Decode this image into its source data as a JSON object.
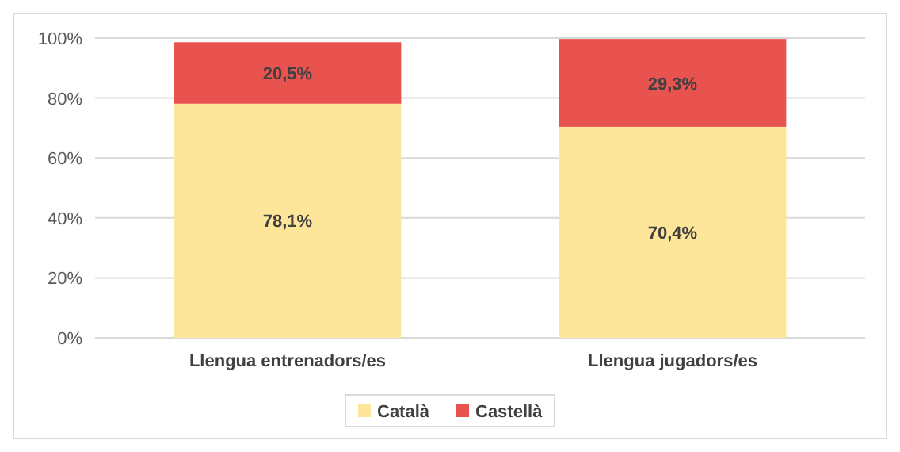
{
  "chart_data": {
    "type": "bar",
    "stacked": true,
    "categories": [
      "Llengua entrenadors/es",
      "Llengua jugadors/es"
    ],
    "series": [
      {
        "name": "Català",
        "color": "#fde699",
        "values": [
          78.1,
          70.4
        ],
        "value_labels": [
          "78,1%",
          "70,4%"
        ]
      },
      {
        "name": "Castellà",
        "color": "#e9534f",
        "values": [
          20.5,
          29.3
        ],
        "value_labels": [
          "20,5%",
          "29,3%"
        ]
      }
    ],
    "ylim": [
      0,
      100
    ],
    "yticks": [
      {
        "value": 0,
        "label": "0%"
      },
      {
        "value": 20,
        "label": "20%"
      },
      {
        "value": 40,
        "label": "40%"
      },
      {
        "value": 60,
        "label": "60%"
      },
      {
        "value": 80,
        "label": "80%"
      },
      {
        "value": 100,
        "label": "100%"
      }
    ],
    "grid": "y",
    "legend": "bottom"
  }
}
